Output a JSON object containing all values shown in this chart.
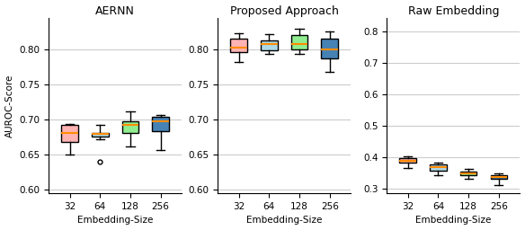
{
  "titles": [
    "AERNN",
    "Proposed Approach",
    "Raw Embedding"
  ],
  "xlabel": "Embedding-Size",
  "ylabel": "AUROC-Score",
  "xtick_labels": [
    "32",
    "64",
    "128",
    "256"
  ],
  "positions": [
    1,
    2,
    3,
    4
  ],
  "aernn": {
    "ylim": [
      0.595,
      0.845
    ],
    "yticks": [
      0.6,
      0.65,
      0.7,
      0.75,
      0.8
    ],
    "boxes": [
      {
        "q1": 0.668,
        "median": 0.681,
        "q3": 0.693,
        "whislo": 0.65,
        "whishi": 0.694,
        "fliers": [],
        "color": "#FFB3B3"
      },
      {
        "q1": 0.676,
        "median": 0.679,
        "q3": 0.681,
        "whislo": 0.672,
        "whishi": 0.692,
        "fliers": [
          0.64
        ],
        "color": "#ADD8E6"
      },
      {
        "q1": 0.681,
        "median": 0.692,
        "q3": 0.697,
        "whislo": 0.662,
        "whishi": 0.711,
        "fliers": [],
        "color": "#90EE90"
      },
      {
        "q1": 0.683,
        "median": 0.697,
        "q3": 0.704,
        "whislo": 0.656,
        "whishi": 0.707,
        "fliers": [],
        "color": "#4682B4"
      }
    ]
  },
  "proposed": {
    "ylim": [
      0.595,
      0.845
    ],
    "yticks": [
      0.6,
      0.65,
      0.7,
      0.75,
      0.8
    ],
    "boxes": [
      {
        "q1": 0.796,
        "median": 0.803,
        "q3": 0.815,
        "whislo": 0.782,
        "whishi": 0.823,
        "fliers": [],
        "color": "#FFB3B3"
      },
      {
        "q1": 0.798,
        "median": 0.807,
        "q3": 0.813,
        "whislo": 0.793,
        "whishi": 0.822,
        "fliers": [],
        "color": "#ADD8E6"
      },
      {
        "q1": 0.8,
        "median": 0.807,
        "q3": 0.82,
        "whislo": 0.793,
        "whishi": 0.829,
        "fliers": [],
        "color": "#90EE90"
      },
      {
        "q1": 0.787,
        "median": 0.8,
        "q3": 0.815,
        "whislo": 0.768,
        "whishi": 0.825,
        "fliers": [],
        "color": "#4682B4"
      }
    ]
  },
  "raw": {
    "ylim": [
      0.285,
      0.845
    ],
    "yticks": [
      0.3,
      0.4,
      0.5,
      0.6,
      0.7,
      0.8
    ],
    "boxes": [
      {
        "q1": 0.382,
        "median": 0.39,
        "q3": 0.396,
        "whislo": 0.366,
        "whishi": 0.403,
        "fliers": [],
        "color": "#FFB3B3"
      },
      {
        "q1": 0.358,
        "median": 0.37,
        "q3": 0.378,
        "whislo": 0.342,
        "whishi": 0.382,
        "fliers": [],
        "color": "#ADD8E6"
      },
      {
        "q1": 0.343,
        "median": 0.348,
        "q3": 0.355,
        "whislo": 0.33,
        "whishi": 0.363,
        "fliers": [],
        "color": "#90EE90"
      },
      {
        "q1": 0.33,
        "median": 0.337,
        "q3": 0.343,
        "whislo": 0.312,
        "whishi": 0.348,
        "fliers": [],
        "color": "#4682B4"
      }
    ]
  },
  "median_color": "#FF8C00",
  "whisker_color": "black",
  "box_edge_color": "black",
  "flier_color": "black",
  "grid_color": "#CCCCCC",
  "background_color": "white",
  "title_fontsize": 9,
  "label_fontsize": 7.5,
  "tick_fontsize": 7.5
}
